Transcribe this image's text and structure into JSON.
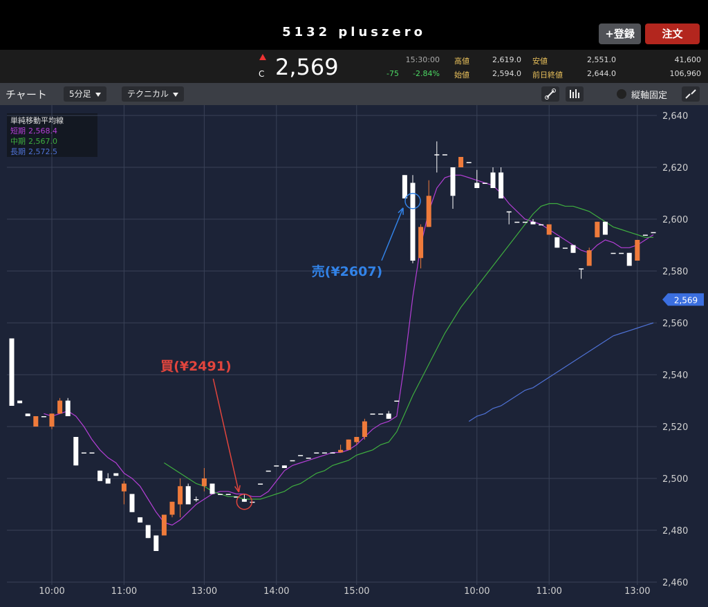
{
  "header": {
    "title": "5132 pluszero",
    "register": "+登録",
    "order": "注文"
  },
  "quote": {
    "mark": "C",
    "price": "2,569",
    "time": "15:30:00",
    "change": "-75",
    "change_pct": "-2.84%",
    "stats": [
      {
        "label": "高値",
        "value": "2,619.0"
      },
      {
        "label": "始値",
        "value": "2,594.0"
      },
      {
        "label": "安値",
        "value": "2,551.0"
      },
      {
        "label": "前日終値",
        "value": "2,644.0"
      }
    ],
    "volume": "41,600",
    "turnover": "106,960"
  },
  "toolbar": {
    "label": "チャート",
    "interval": "5分足",
    "technical": "テクニカル",
    "lock": "縦軸固定"
  },
  "chart_data": {
    "type": "candlestick",
    "legend_title": "単純移動平均線",
    "categories": [
      null,
      null,
      null,
      null,
      null,
      "10:00",
      null,
      null,
      null,
      null,
      null,
      null,
      null,
      null,
      "11:00",
      null,
      null,
      null,
      null,
      null,
      null,
      null,
      null,
      null,
      "13:00",
      null,
      null,
      null,
      null,
      null,
      null,
      null,
      null,
      "14:00",
      null,
      null,
      null,
      null,
      null,
      null,
      null,
      null,
      null,
      "15:00",
      null,
      null,
      null,
      null,
      null,
      null,
      null,
      null,
      null,
      null,
      null,
      null,
      null,
      null,
      "10:00",
      null,
      null,
      null,
      null,
      null,
      null,
      null,
      null,
      "11:00",
      null,
      null,
      null,
      null,
      null,
      null,
      null,
      null,
      null,
      null,
      "13:00",
      null,
      null
    ],
    "open": [
      2554,
      2530,
      2525,
      2520,
      2524,
      2520,
      2525,
      2530,
      2516,
      2510,
      2510,
      2503,
      2500,
      2502,
      2495,
      2494,
      2485,
      2482,
      2478,
      2478,
      2486,
      2490,
      2497,
      2492,
      2497,
      2498,
      2494,
      2494,
      2493,
      2492,
      2491,
      2498,
      2503,
      2505,
      2505,
      2507,
      2509,
      2508,
      2510,
      2510,
      2510,
      2510,
      2511,
      2514,
      2516,
      2525,
      2525,
      2525,
      2530,
      2617,
      2614,
      2585,
      2597,
      2625,
      2625,
      2620,
      2620,
      2622,
      2614,
      2614,
      2618,
      2618,
      2603,
      2599,
      2599,
      2599,
      2598,
      2594,
      2593,
      2589,
      2590,
      2581,
      2582,
      2593,
      2599,
      2587,
      2587,
      2587,
      2584,
      2594,
      2595
    ],
    "high": [
      2554,
      2530,
      2525,
      2524,
      2524,
      2525,
      2531,
      2531,
      2516,
      2510,
      2510,
      2503,
      2502,
      2502,
      2499,
      2494,
      2485,
      2482,
      2478,
      2486,
      2491,
      2500,
      2498,
      2493,
      2504,
      2498,
      2494,
      2494,
      2493,
      2494,
      2491,
      2498,
      2503,
      2505,
      2505,
      2507,
      2509,
      2508,
      2510,
      2510,
      2510,
      2513,
      2515,
      2516,
      2523,
      2525,
      2525,
      2526,
      2530,
      2617,
      2617,
      2598,
      2615,
      2630,
      2625,
      2620,
      2624,
      2622,
      2619,
      2614,
      2620,
      2620,
      2603,
      2599,
      2599,
      2600,
      2598,
      2598,
      2593,
      2589,
      2590,
      2581,
      2589,
      2599,
      2599,
      2587,
      2587,
      2587,
      2592,
      2594,
      2595
    ],
    "low": [
      2528,
      2529,
      2524,
      2520,
      2524,
      2519,
      2525,
      2524,
      2505,
      2510,
      2510,
      2499,
      2498,
      2501,
      2490,
      2487,
      2483,
      2477,
      2472,
      2478,
      2485,
      2485,
      2490,
      2491,
      2495,
      2494,
      2494,
      2494,
      2493,
      2491,
      2491,
      2498,
      2503,
      2505,
      2504,
      2507,
      2509,
      2508,
      2510,
      2510,
      2510,
      2510,
      2511,
      2513,
      2515,
      2525,
      2525,
      2523,
      2530,
      2608,
      2583,
      2581,
      2597,
      2618,
      2625,
      2604,
      2620,
      2622,
      2612,
      2614,
      2612,
      2608,
      2598,
      2599,
      2599,
      2598,
      2598,
      2594,
      2589,
      2589,
      2587,
      2577,
      2582,
      2593,
      2594,
      2587,
      2587,
      2582,
      2584,
      2594,
      2595
    ],
    "close": [
      2528,
      2529,
      2524,
      2524,
      2524,
      2525,
      2530,
      2524,
      2505,
      2510,
      2510,
      2499,
      2498,
      2501,
      2498,
      2487,
      2483,
      2477,
      2472,
      2486,
      2491,
      2497,
      2490,
      2492,
      2500,
      2494,
      2494,
      2494,
      2493,
      2491,
      2491,
      2498,
      2503,
      2505,
      2504,
      2507,
      2509,
      2508,
      2510,
      2510,
      2510,
      2511,
      2515,
      2516,
      2522,
      2525,
      2525,
      2523,
      2530,
      2608,
      2584,
      2597,
      2609,
      2625,
      2625,
      2609,
      2624,
      2622,
      2612,
      2614,
      2612,
      2608,
      2603,
      2599,
      2599,
      2598,
      2598,
      2598,
      2589,
      2589,
      2587,
      2581,
      2588,
      2599,
      2594,
      2587,
      2587,
      2582,
      2592,
      2594,
      2595
    ],
    "up_color": "#ef7b3b",
    "down_color": "#ffffff",
    "series": [
      {
        "name": "短期",
        "legend_value": "2,568.4",
        "color": "#b43fd6",
        "values": [
          null,
          null,
          null,
          null,
          2525,
          2524,
          2525,
          2526,
          2524,
          2520,
          2515,
          2511,
          2508,
          2506,
          2502,
          2500,
          2497,
          2492,
          2487,
          2483,
          2482,
          2484,
          2487,
          2490,
          2492,
          2494,
          2495,
          2495,
          2494,
          2494,
          2493,
          2493,
          2495,
          2499,
          2503,
          2505,
          2506,
          2507,
          2508,
          2509,
          2510,
          2510,
          2511,
          2513,
          2516,
          2519,
          2521,
          2522,
          2524,
          2545,
          2570,
          2590,
          2603,
          2612,
          2616,
          2617,
          2617,
          2616,
          2615,
          2614,
          2613,
          2610,
          2606,
          2603,
          2600,
          2599,
          2598,
          2596,
          2594,
          2592,
          2590,
          2588,
          2587,
          2590,
          2592,
          2591,
          2589,
          2589,
          2590,
          2592,
          2594
        ]
      },
      {
        "name": "中期",
        "legend_value": "2,567.0",
        "color": "#3fae3f",
        "values": [
          null,
          null,
          null,
          null,
          null,
          null,
          null,
          null,
          null,
          null,
          null,
          null,
          null,
          null,
          null,
          null,
          null,
          null,
          null,
          2506,
          2504,
          2502,
          2500,
          2498,
          2497,
          2495,
          2494,
          2493,
          2493,
          2492,
          2492,
          2492,
          2493,
          2494,
          2495,
          2497,
          2498,
          2500,
          2502,
          2503,
          2505,
          2506,
          2507,
          2509,
          2510,
          2511,
          2513,
          2514,
          2518,
          2525,
          2532,
          2538,
          2544,
          2550,
          2556,
          2561,
          2566,
          2570,
          2574,
          2578,
          2582,
          2586,
          2590,
          2594,
          2598,
          2602,
          2605,
          2606,
          2606,
          2605,
          2605,
          2604,
          2603,
          2601,
          2599,
          2597,
          2596,
          2595,
          2594,
          2593,
          2593
        ]
      },
      {
        "name": "長期",
        "legend_value": "2,572.5",
        "color": "#4f72d6",
        "values": [
          null,
          null,
          null,
          null,
          null,
          null,
          null,
          null,
          null,
          null,
          null,
          null,
          null,
          null,
          null,
          null,
          null,
          null,
          null,
          null,
          null,
          null,
          null,
          null,
          null,
          null,
          null,
          null,
          null,
          null,
          null,
          null,
          null,
          null,
          null,
          null,
          null,
          null,
          null,
          null,
          null,
          null,
          null,
          null,
          null,
          null,
          null,
          null,
          null,
          null,
          null,
          null,
          null,
          null,
          null,
          null,
          null,
          2522,
          2524,
          2525,
          2527,
          2528,
          2530,
          2532,
          2534,
          2535,
          2537,
          2539,
          2541,
          2543,
          2545,
          2547,
          2549,
          2551,
          2553,
          2555,
          2556,
          2557,
          2558,
          2559,
          2560
        ]
      }
    ],
    "ylim": [
      2460,
      2640
    ],
    "yticks": [
      {
        "value": 2460,
        "label": "2,460"
      },
      {
        "value": 2480,
        "label": "2,480"
      },
      {
        "value": 2500,
        "label": "2,500"
      },
      {
        "value": 2520,
        "label": "2,520"
      },
      {
        "value": 2540,
        "label": "2,540"
      },
      {
        "value": 2560,
        "label": "2,560"
      },
      {
        "value": 2580,
        "label": "2,580"
      },
      {
        "value": 2600,
        "label": "2,600"
      },
      {
        "value": 2620,
        "label": "2,620"
      },
      {
        "value": 2640,
        "label": "2,640"
      }
    ],
    "grid": true,
    "last_price": {
      "value": 2569,
      "label": "2,569"
    },
    "annotations": [
      {
        "text": "買(¥2491)",
        "index": 29,
        "value": 2491,
        "color": "#e2453d"
      },
      {
        "text": "売(¥2607)",
        "index": 50,
        "value": 2607,
        "color": "#3283e8"
      }
    ]
  }
}
